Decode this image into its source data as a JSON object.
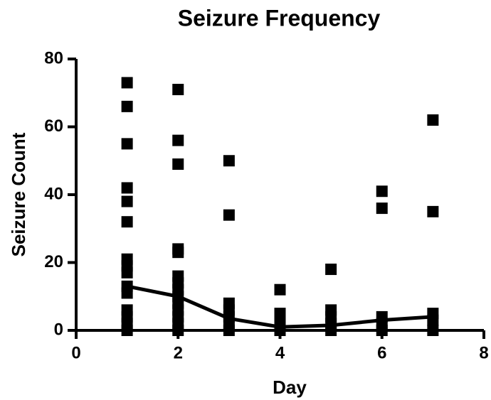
{
  "chart_data": {
    "type": "scatter",
    "title": "Seizure Frequency",
    "x_label": "Day",
    "y_label": "Seizure Count",
    "color": "#000000",
    "points": {
      "x": [
        1,
        1,
        1,
        1,
        1,
        1,
        1,
        1,
        1,
        1,
        1,
        1,
        1,
        1,
        1,
        2,
        2,
        2,
        2,
        2,
        2,
        2,
        2,
        2,
        2,
        2,
        2,
        2,
        2,
        3,
        3,
        3,
        3,
        3,
        3,
        3,
        4,
        4,
        4,
        4,
        4,
        5,
        5,
        5,
        5,
        5,
        6,
        6,
        6,
        6,
        6,
        7,
        7,
        7,
        7,
        7
      ],
      "values": [
        73,
        66,
        55,
        42,
        38,
        32,
        21,
        19,
        17,
        13,
        11,
        6,
        4,
        2,
        0,
        71,
        56,
        49,
        24,
        23,
        16,
        14,
        12,
        10,
        8,
        6,
        4,
        2,
        0,
        50,
        34,
        8,
        6,
        4,
        2,
        0,
        12,
        5,
        3,
        1,
        0,
        18,
        6,
        4,
        2,
        0,
        41,
        36,
        4,
        2,
        0,
        62,
        35,
        5,
        3,
        0
      ]
    },
    "line": {
      "x": [
        1,
        2,
        3,
        4,
        5,
        6,
        7
      ],
      "values": [
        13,
        10,
        3.5,
        1,
        1.5,
        3,
        4
      ]
    },
    "xlim": [
      0,
      8
    ],
    "xticks": [
      0,
      2,
      4,
      6,
      8
    ],
    "ylim": [
      0,
      80
    ],
    "yticks": [
      0,
      20,
      40,
      60,
      80
    ]
  }
}
